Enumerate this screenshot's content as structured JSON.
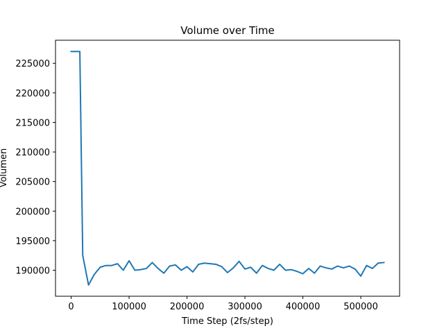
{
  "chart_data": {
    "type": "line",
    "title": "Volume over Time",
    "xlabel": "Time Step (2fs/step)",
    "ylabel": "Volumen",
    "xlim": [
      -27000,
      567000
    ],
    "ylim": [
      185600,
      228900
    ],
    "xticks": [
      0,
      100000,
      200000,
      300000,
      400000,
      500000
    ],
    "xtick_labels": [
      "0",
      "100000",
      "200000",
      "300000",
      "400000",
      "500000"
    ],
    "yticks": [
      190000,
      195000,
      200000,
      205000,
      210000,
      215000,
      220000,
      225000
    ],
    "ytick_labels": [
      "190000",
      "195000",
      "200000",
      "205000",
      "210000",
      "215000",
      "220000",
      "225000"
    ],
    "grid": false,
    "series": [
      {
        "color": "#1f77b4",
        "x": [
          0,
          10000,
          15000,
          20000,
          30000,
          40000,
          50000,
          60000,
          70000,
          80000,
          90000,
          100000,
          110000,
          120000,
          130000,
          140000,
          150000,
          160000,
          170000,
          180000,
          190000,
          200000,
          210000,
          220000,
          230000,
          240000,
          250000,
          260000,
          270000,
          280000,
          290000,
          300000,
          310000,
          320000,
          330000,
          340000,
          350000,
          360000,
          370000,
          380000,
          390000,
          400000,
          410000,
          420000,
          430000,
          440000,
          450000,
          460000,
          470000,
          480000,
          490000,
          500000,
          510000,
          520000,
          530000,
          540000
        ],
        "values": [
          227000,
          227000,
          227000,
          192500,
          187500,
          189300,
          190500,
          190800,
          190800,
          191100,
          190000,
          191600,
          190000,
          190100,
          190300,
          191300,
          190300,
          189500,
          190700,
          190900,
          190000,
          190600,
          189700,
          191000,
          191200,
          191100,
          191000,
          190600,
          189600,
          190400,
          191500,
          190200,
          190500,
          189500,
          190800,
          190300,
          190000,
          191000,
          190000,
          190100,
          189800,
          189400,
          190300,
          189500,
          190700,
          190400,
          190200,
          190700,
          190400,
          190700,
          190200,
          189000,
          190800,
          190300,
          191200,
          191300
        ]
      }
    ]
  }
}
